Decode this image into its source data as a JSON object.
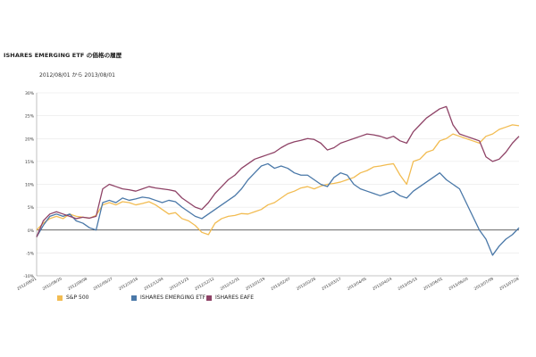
{
  "chart_title": "ISHARES EMERGING ETF の価格の履歴",
  "date_range": "2012/08/01 から 2013/08/01",
  "chart_data": {
    "type": "line",
    "ylim": [
      -10,
      30
    ],
    "yticks": [
      "30%",
      "25%",
      "20%",
      "15%",
      "10%",
      "5%",
      "0%",
      "-5%",
      "-10%"
    ],
    "ytick_values": [
      30,
      25,
      20,
      15,
      10,
      5,
      0,
      -5,
      -10
    ],
    "x_ticks": [
      "2012/08/01",
      "2012/08/20",
      "2012/09/08",
      "2012/09/27",
      "2012/10/16",
      "2012/11/04",
      "2012/11/23",
      "2012/12/12",
      "2012/12/31",
      "2013/01/19",
      "2013/02/07",
      "2013/02/26",
      "2013/03/17",
      "2013/04/05",
      "2013/04/24",
      "2013/05/13",
      "2013/06/01",
      "2013/06/20",
      "2013/07/09",
      "2013/07/28"
    ],
    "grid": true,
    "legend_position": "bottom",
    "series": [
      {
        "name": "S&P 500",
        "color": "#f2bc52",
        "x": [
          0,
          5,
          10,
          15,
          20,
          25,
          30,
          35,
          40,
          45,
          50,
          55,
          60,
          65,
          70,
          75,
          80,
          85,
          90,
          95,
          100,
          105,
          110,
          115,
          120,
          125,
          130,
          135,
          140,
          145,
          150,
          155,
          160,
          165,
          170,
          175,
          180,
          185,
          190,
          195,
          200,
          205,
          210,
          215,
          220,
          225,
          230,
          235,
          240,
          245,
          250,
          255,
          260,
          265,
          270,
          275,
          280,
          285,
          290,
          295,
          300,
          305,
          310,
          315,
          320,
          325,
          330,
          335,
          340,
          345,
          350,
          355,
          360,
          365
        ],
        "values": [
          0,
          1.5,
          2.5,
          3,
          2.5,
          3.5,
          3,
          2.8,
          2.6,
          3.2,
          5.5,
          6,
          5.5,
          6.2,
          6,
          5.5,
          5.8,
          6.2,
          5.5,
          4.5,
          3.5,
          3.8,
          2.5,
          2,
          1,
          -0.5,
          -1,
          1.5,
          2.5,
          3,
          3.2,
          3.6,
          3.5,
          4,
          4.5,
          5.5,
          6,
          7,
          8,
          8.5,
          9.2,
          9.5,
          9,
          9.6,
          10,
          10.2,
          10.5,
          11,
          11.5,
          12.5,
          13,
          13.8,
          14,
          14.3,
          14.5,
          12,
          10,
          15,
          15.5,
          17,
          17.5,
          19.5,
          20,
          21,
          20.5,
          20,
          19.5,
          19,
          20.5,
          21,
          22,
          22.5,
          23,
          22.8
        ]
      },
      {
        "name": "ISHARES EMERGING ETF",
        "color": "#4a78a8",
        "x": [
          0,
          5,
          10,
          15,
          20,
          25,
          30,
          35,
          40,
          45,
          50,
          55,
          60,
          65,
          70,
          75,
          80,
          85,
          90,
          95,
          100,
          105,
          110,
          115,
          120,
          125,
          130,
          135,
          140,
          145,
          150,
          155,
          160,
          165,
          170,
          175,
          180,
          185,
          190,
          195,
          200,
          205,
          210,
          215,
          220,
          225,
          230,
          235,
          240,
          245,
          250,
          255,
          260,
          265,
          270,
          275,
          280,
          285,
          290,
          295,
          300,
          305,
          310,
          315,
          320,
          325,
          330,
          335,
          340,
          345,
          350,
          355,
          360,
          365
        ],
        "values": [
          -1.5,
          1,
          3,
          3.5,
          3,
          3.5,
          2,
          1.5,
          0.5,
          0,
          6,
          6.5,
          6,
          7,
          6.5,
          6.8,
          7.2,
          7,
          6.5,
          6,
          6.5,
          6.2,
          5,
          4,
          3,
          2.5,
          3.5,
          4.5,
          5.5,
          6.5,
          7.5,
          9,
          11,
          12.5,
          14,
          14.5,
          13.5,
          14,
          13.5,
          12.5,
          12,
          12,
          11,
          10,
          9.5,
          11.5,
          12.5,
          12,
          10,
          9,
          8.5,
          8,
          7.5,
          8,
          8.5,
          7.5,
          7,
          8.5,
          9.5,
          10.5,
          11.5,
          12.5,
          11,
          10,
          9,
          6,
          3,
          0,
          -2,
          -5.5,
          -3.5,
          -2,
          -1,
          0.5
        ]
      },
      {
        "name": "ISHARES EAFE",
        "color": "#8e4266",
        "x": [
          0,
          5,
          10,
          15,
          20,
          25,
          30,
          35,
          40,
          45,
          50,
          55,
          60,
          65,
          70,
          75,
          80,
          85,
          90,
          95,
          100,
          105,
          110,
          115,
          120,
          125,
          130,
          135,
          140,
          145,
          150,
          155,
          160,
          165,
          170,
          175,
          180,
          185,
          190,
          195,
          200,
          205,
          210,
          215,
          220,
          225,
          230,
          235,
          240,
          245,
          250,
          255,
          260,
          265,
          270,
          275,
          280,
          285,
          290,
          295,
          300,
          305,
          310,
          315,
          320,
          325,
          330,
          335,
          340,
          345,
          350,
          355,
          360,
          365
        ],
        "values": [
          -1.5,
          2,
          3.5,
          4,
          3.5,
          3,
          2.5,
          2.8,
          2.6,
          3,
          9,
          10,
          9.5,
          9,
          8.8,
          8.5,
          9,
          9.5,
          9.2,
          9,
          8.8,
          8.5,
          7,
          6,
          5,
          4.5,
          6,
          8,
          9.5,
          11,
          12,
          13.5,
          14.5,
          15.5,
          16,
          16.5,
          17,
          18,
          18.8,
          19.3,
          19.6,
          20,
          19.8,
          19,
          17.5,
          18,
          19,
          19.5,
          20,
          20.5,
          21,
          20.8,
          20.5,
          20,
          20.5,
          19.5,
          19,
          21.5,
          23,
          24.5,
          25.5,
          26.5,
          27,
          23,
          21,
          20.5,
          20,
          19.5,
          16,
          15,
          15.5,
          17,
          19,
          20.5
        ]
      }
    ]
  }
}
